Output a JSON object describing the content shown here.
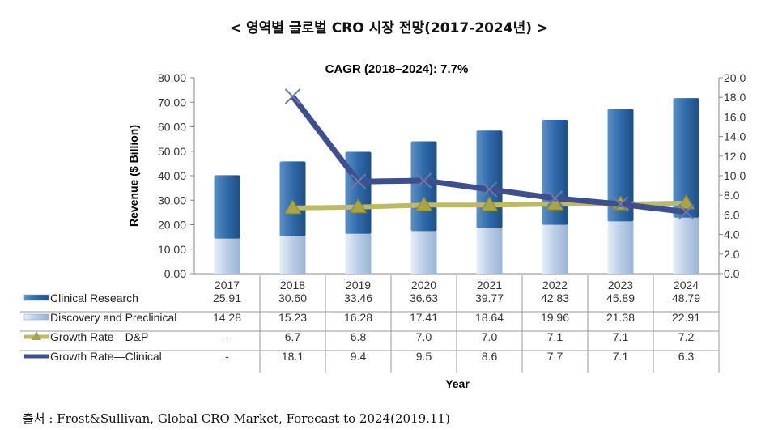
{
  "title": "< 영역별 글로벌 CRO 시장 전망(2017-2024년) >",
  "source": "출처 : Frost&Sullivan, Global CRO Market, Forecast to 2024(2019.11)",
  "chart_data": {
    "type": "bar",
    "stacked": true,
    "annotation": "CAGR (2018–2024):  7.7%",
    "xlabel": "Year",
    "ylabel": "Revenue ($ Billion)",
    "ylim": [
      0,
      80
    ],
    "y2lim": [
      0,
      20
    ],
    "yticks": [
      "0.00",
      "10.00",
      "20.00",
      "30.00",
      "40.00",
      "50.00",
      "60.00",
      "70.00",
      "80.00"
    ],
    "y2ticks": [
      "0.0",
      "2.0",
      "4.0",
      "6.0",
      "8.0",
      "10.0",
      "12.0",
      "14.0",
      "16.0",
      "18.0",
      "20.0"
    ],
    "grid": false,
    "legend": "data-table-left",
    "categories": [
      "2017",
      "2018",
      "2019",
      "2020",
      "2021",
      "2022",
      "2023",
      "2024"
    ],
    "series": [
      {
        "name": "Clinical Research",
        "kind": "bar",
        "axis": "left",
        "color": "#2f6aa8",
        "values": [
          25.91,
          30.6,
          33.46,
          36.63,
          39.77,
          42.83,
          45.89,
          48.79
        ],
        "labels": [
          "25.91",
          "30.60",
          "33.46",
          "36.63",
          "39.77",
          "42.83",
          "45.89",
          "48.79"
        ]
      },
      {
        "name": "Discovery and Preclinical",
        "kind": "bar",
        "axis": "left",
        "color": "#b9cde6",
        "values": [
          14.28,
          15.23,
          16.28,
          17.41,
          18.64,
          19.96,
          21.38,
          22.91
        ],
        "labels": [
          "14.28",
          "15.23",
          "16.28",
          "17.41",
          "18.64",
          "19.96",
          "21.38",
          "22.91"
        ]
      },
      {
        "name": "Growth Rate—D&P",
        "kind": "line",
        "axis": "right",
        "color": "#bdb96a",
        "marker": "triangle",
        "values": [
          null,
          6.7,
          6.8,
          7.0,
          7.0,
          7.1,
          7.1,
          7.2
        ],
        "labels": [
          "-",
          "6.7",
          "6.8",
          "7.0",
          "7.0",
          "7.1",
          "7.1",
          "7.2"
        ]
      },
      {
        "name": "Growth Rate—Clinical",
        "kind": "line",
        "axis": "right",
        "color": "#3f4f8c",
        "marker": "x",
        "values": [
          null,
          18.1,
          9.4,
          9.5,
          8.6,
          7.7,
          7.1,
          6.3
        ],
        "labels": [
          "-",
          "18.1",
          "9.4",
          "9.5",
          "8.6",
          "7.7",
          "7.1",
          "6.3"
        ]
      }
    ]
  }
}
